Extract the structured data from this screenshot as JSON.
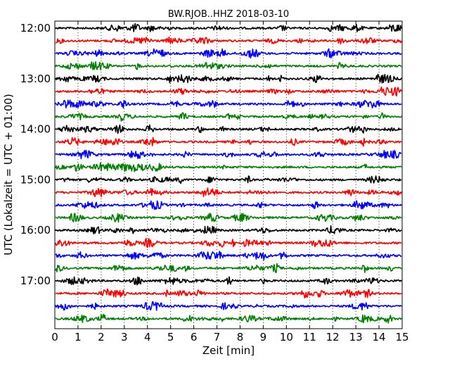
{
  "chart_data": {
    "type": "line",
    "title": "BW.RJOB..HHZ 2018-03-10",
    "xlabel": "Zeit  [min]",
    "ylabel": "UTC (Lokalzeit = UTC + 01:00)",
    "xlim": [
      0,
      15
    ],
    "x_ticks": [
      "0",
      "1",
      "2",
      "3",
      "4",
      "5",
      "6",
      "7",
      "8",
      "9",
      "10",
      "11",
      "12",
      "13",
      "14",
      "15"
    ],
    "grid": "vertical dotted at each minute",
    "time_labels": [
      "12:00",
      "13:00",
      "14:00",
      "15:00",
      "16:00",
      "17:00"
    ],
    "rows_per_hour": 4,
    "row_minutes": 15,
    "row_count": 24,
    "color_cycle": [
      "#000000",
      "#ff0000",
      "#0000ff",
      "#008000"
    ],
    "series_rows": [
      {
        "start": "12:00",
        "color": "#000000"
      },
      {
        "start": "12:15",
        "color": "#ff0000"
      },
      {
        "start": "12:30",
        "color": "#0000ff"
      },
      {
        "start": "12:45",
        "color": "#008000"
      },
      {
        "start": "13:00",
        "color": "#000000"
      },
      {
        "start": "13:15",
        "color": "#ff0000"
      },
      {
        "start": "13:30",
        "color": "#0000ff"
      },
      {
        "start": "13:45",
        "color": "#008000"
      },
      {
        "start": "14:00",
        "color": "#000000"
      },
      {
        "start": "14:15",
        "color": "#ff0000"
      },
      {
        "start": "14:30",
        "color": "#0000ff"
      },
      {
        "start": "14:45",
        "color": "#008000"
      },
      {
        "start": "15:00",
        "color": "#000000"
      },
      {
        "start": "15:15",
        "color": "#ff0000"
      },
      {
        "start": "15:30",
        "color": "#0000ff"
      },
      {
        "start": "15:45",
        "color": "#008000"
      },
      {
        "start": "16:00",
        "color": "#000000"
      },
      {
        "start": "16:15",
        "color": "#ff0000"
      },
      {
        "start": "16:30",
        "color": "#0000ff"
      },
      {
        "start": "16:45",
        "color": "#008000"
      },
      {
        "start": "17:00",
        "color": "#000000"
      },
      {
        "start": "17:15",
        "color": "#ff0000"
      },
      {
        "start": "17:30",
        "color": "#0000ff"
      },
      {
        "start": "17:45",
        "color": "#008000"
      }
    ]
  }
}
